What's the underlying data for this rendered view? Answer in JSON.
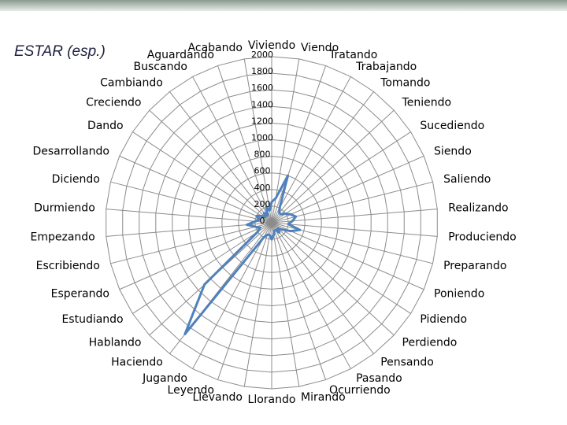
{
  "chart_data": {
    "type": "radar",
    "title": "ESTAR (esp.)",
    "categories": [
      "Viviendo",
      "Viendo",
      "Tratando",
      "Trabajando",
      "Tomando",
      "Teniendo",
      "Sucediendo",
      "Siendo",
      "Saliendo",
      "Realizando",
      "Produciendo",
      "Preparando",
      "Poniendo",
      "Pidiendo",
      "Perdiendo",
      "Pensando",
      "Pasando",
      "Ocurriendo",
      "Mirando",
      "Llorando",
      "Llevando",
      "Leyendo",
      "Jugando",
      "Haciendo",
      "Hablando",
      "Estudiando",
      "Esperando",
      "Escribiendo",
      "Empezando",
      "Durmiendo",
      "Diciendo",
      "Desarrollando",
      "Dando",
      "Creciendo",
      "Cambiando",
      "Buscando",
      "Aguardando",
      "Acabando"
    ],
    "values": [
      250,
      300,
      600,
      200,
      150,
      150,
      200,
      250,
      300,
      250,
      200,
      350,
      250,
      150,
      100,
      150,
      100,
      100,
      150,
      200,
      150,
      150,
      200,
      1700,
      1100,
      200,
      150,
      200,
      300,
      200,
      150,
      200,
      150,
      100,
      150,
      100,
      200,
      150
    ],
    "color": "#4f81bd",
    "ylim": [
      0,
      2000
    ],
    "yticks": [
      0,
      200,
      400,
      600,
      800,
      1000,
      1200,
      1400,
      1600,
      1800,
      2000
    ],
    "grid": true
  }
}
